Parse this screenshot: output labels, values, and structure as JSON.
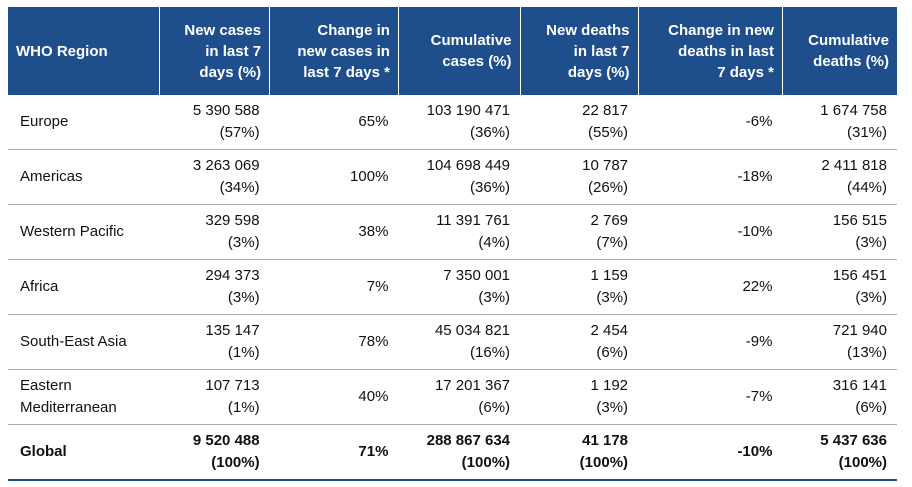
{
  "table": {
    "header": [
      [
        "WHO Region"
      ],
      [
        "New cases",
        "in  last 7",
        "days (%)"
      ],
      [
        "Change in",
        "new cases in",
        "last 7 days *"
      ],
      [
        "Cumulative",
        "cases (%)"
      ],
      [
        "New deaths",
        "in  last 7",
        "days (%)"
      ],
      [
        "Change in new",
        "deaths in last",
        "7 days *"
      ],
      [
        "Cumulative",
        "deaths (%)"
      ]
    ],
    "rows": [
      {
        "region": [
          "Europe"
        ],
        "cells": [
          [
            "5 390 588",
            "(57%)"
          ],
          [
            "65%"
          ],
          [
            "103 190 471",
            "(36%)"
          ],
          [
            "22 817",
            "(55%)"
          ],
          [
            "-6%"
          ],
          [
            "1 674 758",
            "(31%)"
          ]
        ]
      },
      {
        "region": [
          "Americas"
        ],
        "cells": [
          [
            "3 263 069",
            "(34%)"
          ],
          [
            "100%"
          ],
          [
            "104 698 449",
            "(36%)"
          ],
          [
            "10 787",
            "(26%)"
          ],
          [
            "-18%"
          ],
          [
            "2 411 818",
            "(44%)"
          ]
        ]
      },
      {
        "region": [
          "Western Pacific"
        ],
        "cells": [
          [
            "329 598",
            "(3%)"
          ],
          [
            "38%"
          ],
          [
            "11 391 761",
            "(4%)"
          ],
          [
            "2 769",
            "(7%)"
          ],
          [
            "-10%"
          ],
          [
            "156 515",
            "(3%)"
          ]
        ]
      },
      {
        "region": [
          "Africa"
        ],
        "cells": [
          [
            "294 373",
            "(3%)"
          ],
          [
            "7%"
          ],
          [
            "7 350 001",
            "(3%)"
          ],
          [
            "1 159",
            "(3%)"
          ],
          [
            "22%"
          ],
          [
            "156 451",
            "(3%)"
          ]
        ]
      },
      {
        "region": [
          "South-East Asia"
        ],
        "cells": [
          [
            "135 147",
            "(1%)"
          ],
          [
            "78%"
          ],
          [
            "45 034 821",
            "(16%)"
          ],
          [
            "2 454",
            "(6%)"
          ],
          [
            "-9%"
          ],
          [
            "721 940",
            "(13%)"
          ]
        ]
      },
      {
        "region": [
          "Eastern",
          "Mediterranean"
        ],
        "cells": [
          [
            "107 713",
            "(1%)"
          ],
          [
            "40%"
          ],
          [
            "17 201 367",
            "(6%)"
          ],
          [
            "1 192",
            "(3%)"
          ],
          [
            "-7%"
          ],
          [
            "316 141",
            "(6%)"
          ]
        ]
      },
      {
        "region": [
          "Global"
        ],
        "cells": [
          [
            "9 520 488",
            "(100%)"
          ],
          [
            "71%"
          ],
          [
            "288 867 634",
            "(100%)"
          ],
          [
            "41 178",
            "(100%)"
          ],
          [
            "-10%"
          ],
          [
            "5 437 636",
            "(100%)"
          ]
        ]
      }
    ]
  }
}
